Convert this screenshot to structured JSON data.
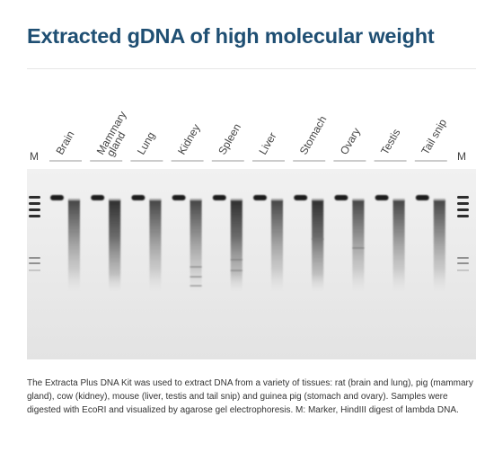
{
  "header": {
    "title": "Extracted gDNA of high molecular weight"
  },
  "gel": {
    "marker_label": "M",
    "lane_labels": [
      {
        "line1": "Brain",
        "line2": ""
      },
      {
        "line1": "Mammary",
        "line2": "gland"
      },
      {
        "line1": "Lung",
        "line2": ""
      },
      {
        "line1": "Kidney",
        "line2": ""
      },
      {
        "line1": "Spleen",
        "line2": ""
      },
      {
        "line1": "Liver",
        "line2": ""
      },
      {
        "line1": "Stomach",
        "line2": ""
      },
      {
        "line1": "Ovary",
        "line2": ""
      },
      {
        "line1": "Testis",
        "line2": ""
      },
      {
        "line1": "Tail snip",
        "line2": ""
      }
    ]
  },
  "caption": {
    "text": "The Extracta Plus DNA Kit was used to extract DNA from a variety of tissues: rat (brain and lung), pig (mammary gland), cow (kidney), mouse (liver, testis and tail snip) and guinea pig (stomach and ovary). Samples were digested with EcoRI and visualized by agarose gel electrophoresis. M: Marker, HindIII digest of lambda DNA."
  }
}
